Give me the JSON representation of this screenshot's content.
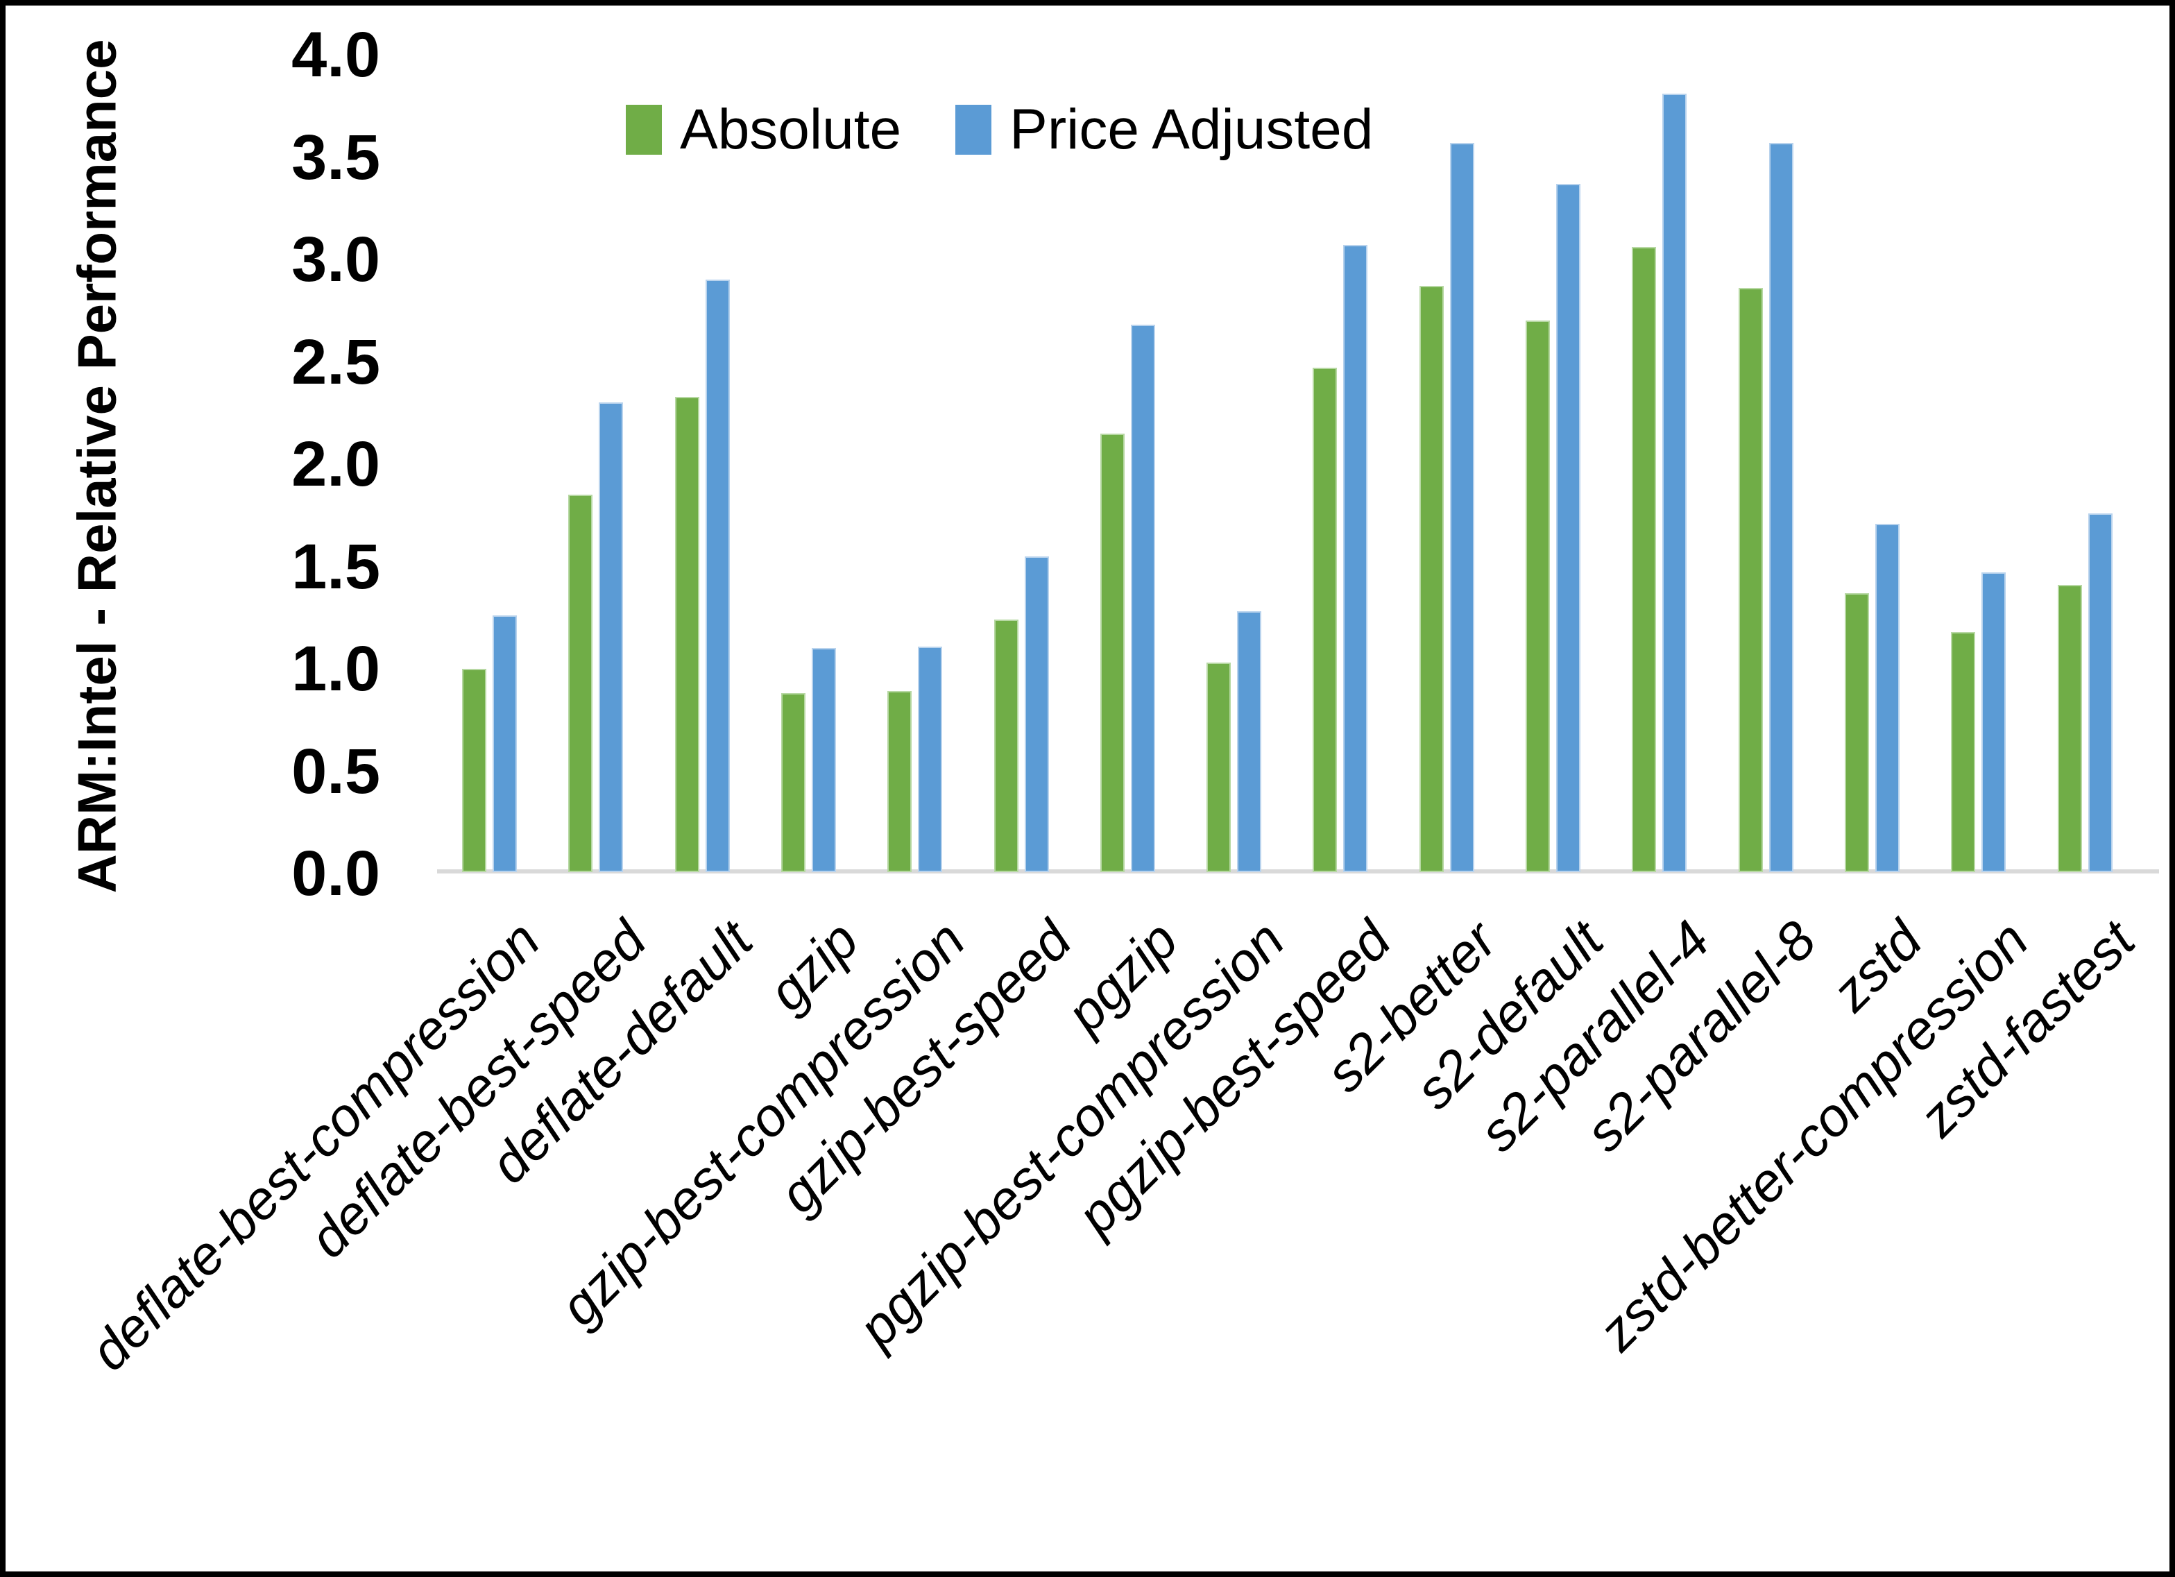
{
  "page": {
    "background": "#ffffff",
    "border_color": "#000000"
  },
  "chart_data": {
    "type": "bar",
    "title": "",
    "ylabel": "ARM:Intel - Relative Performance",
    "xlabel": "",
    "ylim": [
      0.0,
      4.0
    ],
    "ytick_step": 0.5,
    "ytick_labels": [
      "0.0",
      "0.5",
      "1.0",
      "1.5",
      "2.0",
      "2.5",
      "3.0",
      "3.5",
      "4.0"
    ],
    "grid": false,
    "legend_position": "top-center",
    "axis_line_color": "#D9D9D9",
    "categories": [
      "deflate-best-compression",
      "deflate-best-speed",
      "deflate-default",
      "gzip",
      "gzip-best-compression",
      "gzip-best-speed",
      "pgzip",
      "pgzip-best-compression",
      "pgzip-best-speed",
      "s2-better",
      "s2-default",
      "s2-parallel-4",
      "s2-parallel-8",
      "zstd",
      "zstd-better-compression",
      "zstd-fastest"
    ],
    "series": [
      {
        "name": "Absolute",
        "color": "#70AD47",
        "edge_color": "#b7d8a3",
        "values": [
          1.0,
          1.85,
          2.33,
          0.88,
          0.89,
          1.24,
          2.15,
          1.03,
          2.47,
          2.87,
          2.7,
          3.06,
          2.86,
          1.37,
          1.18,
          1.41
        ]
      },
      {
        "name": "Price Adjusted",
        "color": "#5B9BD5",
        "edge_color": "#b9d3ed",
        "values": [
          1.26,
          2.3,
          2.9,
          1.1,
          1.11,
          1.55,
          2.68,
          1.28,
          3.07,
          3.57,
          3.37,
          3.81,
          3.57,
          1.71,
          1.47,
          1.76
        ]
      }
    ]
  }
}
